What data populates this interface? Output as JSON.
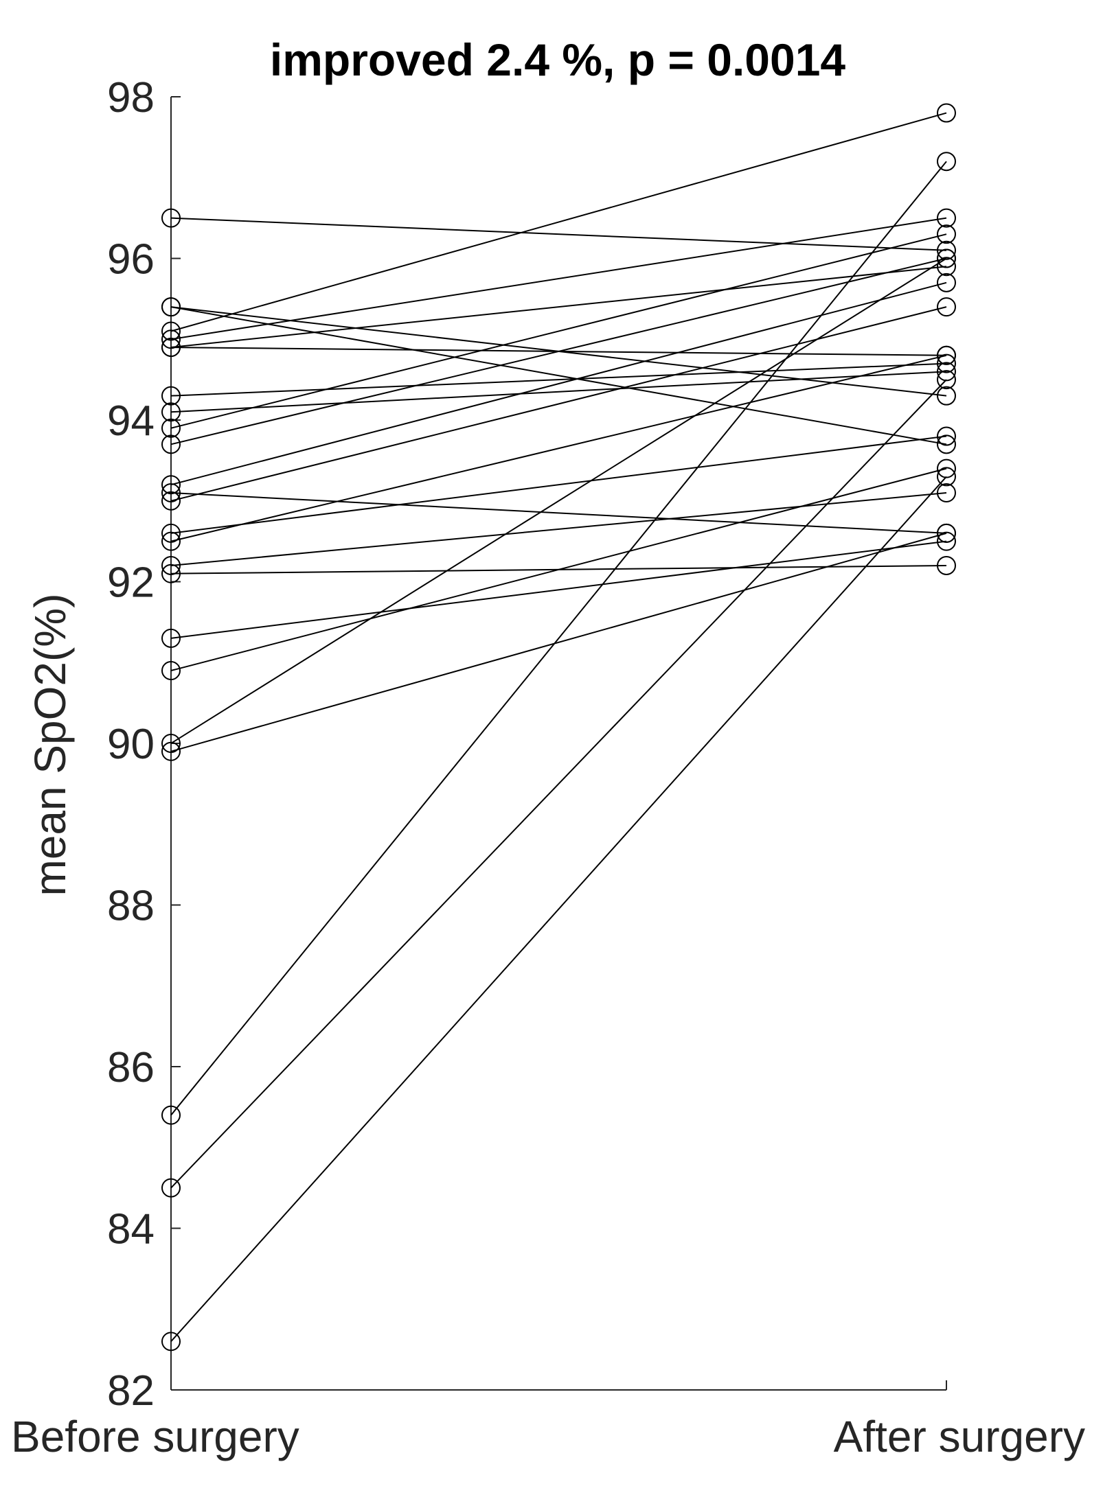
{
  "chart_data": {
    "type": "line",
    "title": "improved  2.4 %, p = 0.0014",
    "ylabel": "mean SpO2(%)",
    "xlabel": "",
    "categories": [
      "Before surgery",
      "After surgery"
    ],
    "ylim": [
      82,
      98
    ],
    "yticks": [
      82,
      84,
      86,
      88,
      90,
      92,
      94,
      96,
      98
    ],
    "grid": false,
    "legend": "none",
    "marker": "open-circle",
    "line_color": "#000000",
    "pairs": [
      {
        "before": 96.5,
        "after": 96.1
      },
      {
        "before": 95.4,
        "after": 93.7
      },
      {
        "before": 95.4,
        "after": 94.3
      },
      {
        "before": 95.1,
        "after": 97.8
      },
      {
        "before": 95.0,
        "after": 96.5
      },
      {
        "before": 94.9,
        "after": 95.9
      },
      {
        "before": 94.9,
        "after": 94.8
      },
      {
        "before": 94.3,
        "after": 94.7
      },
      {
        "before": 94.1,
        "after": 94.6
      },
      {
        "before": 93.9,
        "after": 96.3
      },
      {
        "before": 93.7,
        "after": 96.0
      },
      {
        "before": 93.2,
        "after": 95.7
      },
      {
        "before": 93.1,
        "after": 92.6
      },
      {
        "before": 93.0,
        "after": 95.4
      },
      {
        "before": 92.6,
        "after": 93.8
      },
      {
        "before": 92.5,
        "after": 94.8
      },
      {
        "before": 92.2,
        "after": 93.1
      },
      {
        "before": 92.1,
        "after": 92.2
      },
      {
        "before": 91.3,
        "after": 92.5
      },
      {
        "before": 90.9,
        "after": 93.4
      },
      {
        "before": 90.0,
        "after": 96.0
      },
      {
        "before": 89.9,
        "after": 92.6
      },
      {
        "before": 85.4,
        "after": 97.2
      },
      {
        "before": 84.5,
        "after": 94.5
      },
      {
        "before": 82.6,
        "after": 93.3
      }
    ]
  }
}
